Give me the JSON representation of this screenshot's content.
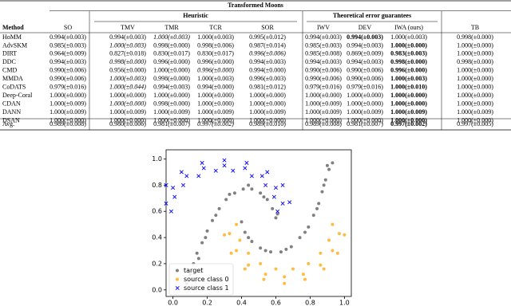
{
  "table": {
    "title": "Transformed Moons",
    "groups": [
      "Heuristic",
      "Theoretical error guarantees"
    ],
    "columns": [
      "Method",
      "SO",
      "TMV",
      "TMR",
      "TCR",
      "SOR",
      "IWV",
      "DEV",
      "IWA (ours)",
      "TB"
    ],
    "rows": [
      [
        "HoMM",
        "0.994(±0.003)",
        "0.994(±0.003)",
        {
          "text": "1.000(±0.003)",
          "style": "italic"
        },
        "1.000(±0.003)",
        "0.995(±0.012)",
        "0.994(±0.003)",
        {
          "text": "0.994(±0.003)",
          "style": "bold"
        },
        "1.000(±0.003)",
        "0.998(±0.000)"
      ],
      [
        "AdvSKM",
        "0.985(±0.003)",
        {
          "text": "1.000(±0.003)",
          "style": "italic"
        },
        "0.998(±0.000)",
        "0.998(±0.006)",
        "0.987(±0.014)",
        "0.985(±0.003)",
        "0.994(±0.003)",
        {
          "text": "1.000(±0.000)",
          "style": "bold"
        },
        "1.000(±0.000)"
      ],
      [
        "DIRT",
        "0.964(±0.009)",
        "0.827(±0.018)",
        "0.830(±0.017)",
        "0.830(±0.017)",
        {
          "text": "0.996(±0.006)",
          "style": "italic"
        },
        "0.985(±0.008)",
        "0.869(±0.009)",
        {
          "text": "0.983(±0.003)",
          "style": "bold"
        },
        "1.000(±0.000)"
      ],
      [
        "DDC",
        "0.994(±0.003)",
        {
          "text": "0.998(±0.000)",
          "style": "italic"
        },
        "0.996(±0.000)",
        "0.996(±0.000)",
        "0.994(±0.003)",
        "0.994(±0.003)",
        "0.994(±0.003)",
        {
          "text": "0.998(±0.000)",
          "style": "bold"
        },
        "0.998(±0.000)"
      ],
      [
        "CMD",
        "0.990(±0.006)",
        "0.956(±0.000)",
        "1.000(±0.000)",
        {
          "text": "0.996(±0.000)",
          "style": "italic"
        },
        "0.994(±0.000)",
        "0.990(±0.006)",
        "0.990(±0.006)",
        {
          "text": "0.996(±0.000)",
          "style": "bold"
        },
        "1.000(±0.000)"
      ],
      [
        "MMDA",
        "0.990(±0.006)",
        {
          "text": "1.000(±0.003)",
          "style": "italic"
        },
        "0.998(±0.000)",
        "1.000(±0.003)",
        "0.996(±0.003)",
        "0.990(±0.006)",
        "0.990(±0.006)",
        {
          "text": "1.000(±0.003)",
          "style": "bold"
        },
        "1.000(±0.000)"
      ],
      [
        "CoDATS",
        "0.979(±0.016)",
        {
          "text": "1.000(±0.044)",
          "style": "italic"
        },
        "0.994(±0.003)",
        "0.994(±0.000)",
        "0.981(±0.012)",
        "0.979(±0.016)",
        "0.979(±0.016)",
        {
          "text": "1.000(±0.010)",
          "style": "bold"
        },
        "1.000(±0.000)"
      ],
      [
        "Deep-Coral",
        "1.000(±0.000)",
        "1.000(±0.000)",
        "1.000(±0.000)",
        "1.000(±0.000)",
        "1.000(±0.000)",
        "1.000(±0.000)",
        "1.000(±0.000)",
        {
          "text": "1.000(±0.000)",
          "style": "bold"
        },
        "1.000(±0.000)"
      ],
      [
        "CDAN",
        "1.000(±0.009)",
        {
          "text": "1.000(±0.000)",
          "style": "italic"
        },
        "0.998(±0.000)",
        "1.000(±0.000)",
        "1.000(±0.000)",
        "1.000(±0.009)",
        "1.000(±0.000)",
        {
          "text": "1.000(±0.000)",
          "style": "bold"
        },
        "1.000(±0.000)"
      ],
      [
        "DANN",
        "1.000(±0.009)",
        "1.000(±0.009)",
        "1.000(±0.009)",
        "1.000(±0.009)",
        "1.000(±0.009)",
        "1.000(±0.009)",
        "1.000(±0.009)",
        {
          "text": "1.000(±0.009)",
          "style": "bold"
        },
        "1.000(±0.009)"
      ],
      [
        "DSAN",
        "1.000(±0.000)",
        "1.000(±0.000)",
        "1.000(±0.000)",
        "1.000(±0.000)",
        "1.000(±0.000)",
        "1.000(±0.000)",
        "1.000(±0.000)",
        {
          "text": "1.000(±0.000)",
          "style": "bold"
        },
        "1.000(±0.000)"
      ],
      [
        "Avg.",
        "0.989(±0.008)",
        "0.980(±0.006)",
        "0.981(±0.007)",
        {
          "text": "0.997(±0.002)",
          "style": "italic"
        },
        "0.989(±0.010)",
        "0.989(±0.008)",
        "0.981(±0.007)",
        {
          "text": "0.997(±0.002)",
          "style": "bold"
        },
        "0.997(±0.005)"
      ]
    ]
  },
  "chart_data": {
    "type": "scatter",
    "legend": "lower left",
    "xlim": [
      -0.04,
      1.04
    ],
    "ylim": [
      -0.05,
      1.07
    ],
    "xticks": [
      {
        "value": 0,
        "label": "0.0"
      },
      {
        "value": 0.2,
        "label": "0.2"
      },
      {
        "value": 0.4,
        "label": "0.4"
      },
      {
        "value": 0.6,
        "label": "0.6"
      },
      {
        "value": 0.8,
        "label": "0.8"
      },
      {
        "value": 1,
        "label": "1.0"
      }
    ],
    "yticks": [
      {
        "value": 0,
        "label": "0.0"
      },
      {
        "value": 0.2,
        "label": "0.2"
      },
      {
        "value": 0.4,
        "label": "0.4"
      },
      {
        "value": 0.6,
        "label": "0.6"
      },
      {
        "value": 0.8,
        "label": "0.8"
      },
      {
        "value": 1,
        "label": "1.0"
      }
    ],
    "series": [
      {
        "name": "target",
        "color": "#555555",
        "marker": "o",
        "x": [
          0.08,
          0.1,
          0.12,
          0.14,
          0.17,
          0.2,
          0.23,
          0.27,
          0.31,
          0.36,
          0.41,
          0.46,
          0.51,
          0.55,
          0.58,
          0.6,
          0.11,
          0.15,
          0.19,
          0.25,
          0.33,
          0.44,
          0.53,
          0.61,
          0.4,
          0.42,
          0.46,
          0.51,
          0.57,
          0.63,
          0.69,
          0.74,
          0.79,
          0.82,
          0.85,
          0.87,
          0.89,
          0.91,
          0.93,
          0.44,
          0.54,
          0.66,
          0.77,
          0.84,
          0.88,
          0.9
        ],
        "y": [
          0.05,
          0.12,
          0.2,
          0.28,
          0.36,
          0.45,
          0.53,
          0.62,
          0.69,
          0.74,
          0.77,
          0.77,
          0.74,
          0.69,
          0.62,
          0.55,
          0.08,
          0.24,
          0.4,
          0.57,
          0.73,
          0.8,
          0.71,
          0.58,
          0.52,
          0.44,
          0.37,
          0.32,
          0.29,
          0.29,
          0.33,
          0.4,
          0.48,
          0.57,
          0.66,
          0.75,
          0.84,
          0.92,
          0.97,
          0.4,
          0.3,
          0.31,
          0.44,
          0.62,
          0.8,
          0.95
        ]
      },
      {
        "name": "source class 0",
        "color": "#ffa500",
        "marker": "o",
        "x": [
          0.33,
          0.37,
          0.44,
          0.54,
          0.65,
          0.76,
          0.86,
          0.93,
          0.97,
          0.37,
          0.39,
          0.44,
          0.51,
          0.6,
          0.7,
          0.79,
          0.86,
          0.91,
          0.93,
          0.3,
          0.34,
          0.42,
          0.53,
          0.65,
          0.77,
          0.88,
          0.96,
          1.0
        ],
        "y": [
          0.43,
          0.3,
          0.19,
          0.12,
          0.1,
          0.12,
          0.19,
          0.3,
          0.43,
          0.5,
          0.38,
          0.28,
          0.2,
          0.16,
          0.16,
          0.2,
          0.28,
          0.38,
          0.5,
          0.42,
          0.28,
          0.16,
          0.08,
          0.05,
          0.08,
          0.16,
          0.28,
          0.42
        ]
      },
      {
        "name": "source class 1",
        "color": "#0000ff",
        "marker": "x",
        "x": [
          0.61,
          0.59,
          0.54,
          0.46,
          0.35,
          0.25,
          0.15,
          0.06,
          0.01,
          -0.01,
          0.68,
          0.64,
          0.55,
          0.43,
          0.3,
          0.17,
          0.05,
          -0.04,
          -0.04,
          0.64,
          0.6,
          0.52,
          0.42,
          0.3,
          0.18,
          0.08,
          0.0
        ],
        "y": [
          0.6,
          0.71,
          0.8,
          0.87,
          0.91,
          0.91,
          0.87,
          0.8,
          0.71,
          0.6,
          0.67,
          0.8,
          0.9,
          0.97,
          0.99,
          0.97,
          0.9,
          0.8,
          0.66,
          0.66,
          0.78,
          0.87,
          0.93,
          0.95,
          0.93,
          0.87,
          0.78
        ]
      }
    ]
  }
}
